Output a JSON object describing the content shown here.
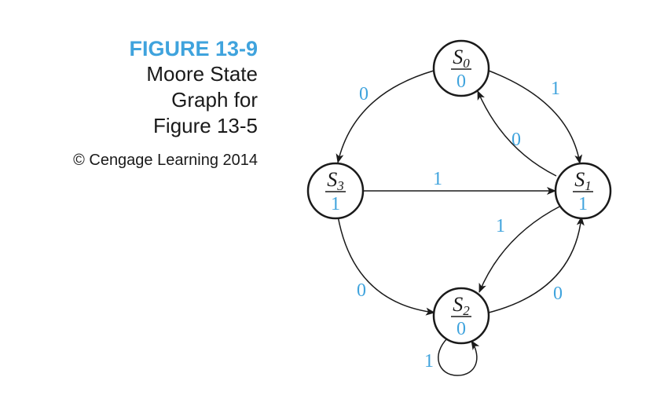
{
  "caption": {
    "figure_number": "FIGURE 13-9",
    "lines": [
      "Moore State",
      "Graph for",
      "Figure 13-5"
    ],
    "credit": "© Cengage Learning 2014"
  },
  "colors": {
    "accent": "#3fa3dd",
    "ink": "#1a1a1a"
  },
  "states": [
    {
      "id": "S0",
      "name": "S",
      "subscript": "0",
      "output": "0"
    },
    {
      "id": "S1",
      "name": "S",
      "subscript": "1",
      "output": "1"
    },
    {
      "id": "S2",
      "name": "S",
      "subscript": "2",
      "output": "0"
    },
    {
      "id": "S3",
      "name": "S",
      "subscript": "3",
      "output": "1"
    }
  ],
  "transitions": [
    {
      "id": "s0-s3",
      "from": "S0",
      "to": "S3",
      "input": "0"
    },
    {
      "id": "s0-s1",
      "from": "S0",
      "to": "S1",
      "input": "1"
    },
    {
      "id": "s1-s0",
      "from": "S1",
      "to": "S0",
      "input": "0"
    },
    {
      "id": "s3-s1",
      "from": "S3",
      "to": "S1",
      "input": "1"
    },
    {
      "id": "s1-s2",
      "from": "S1",
      "to": "S2",
      "input": "1"
    },
    {
      "id": "s2-s1",
      "from": "S2",
      "to": "S1",
      "input": "0"
    },
    {
      "id": "s3-s2",
      "from": "S3",
      "to": "S2",
      "input": "0"
    },
    {
      "id": "s2-s2",
      "from": "S2",
      "to": "S2",
      "input": "1"
    }
  ]
}
